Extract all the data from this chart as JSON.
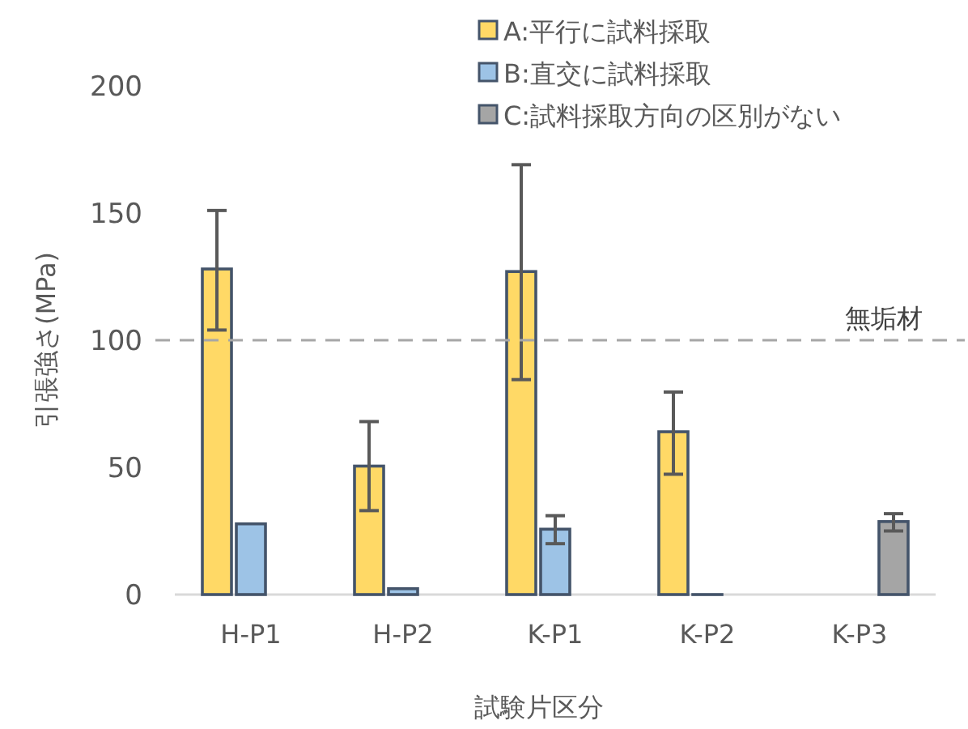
{
  "chart_data": {
    "type": "bar",
    "xlabel": "試験片区分",
    "ylabel": "引張強さ(MPa)",
    "categories": [
      "H-P1",
      "H-P2",
      "K-P1",
      "K-P2",
      "K-P3"
    ],
    "series": [
      {
        "name": "A:平行に試料採取",
        "color": "#ffd966",
        "values": [
          128,
          50.5,
          127,
          64,
          null
        ],
        "errors": [
          [
            104,
            151
          ],
          [
            33,
            68
          ],
          [
            84.5,
            169
          ],
          [
            47.3,
            79.6
          ],
          null
        ]
      },
      {
        "name": "B:直交に試料採取",
        "color": "#9dc3e6",
        "values": [
          27.8,
          2.3,
          25.7,
          0,
          null
        ],
        "errors": [
          null,
          null,
          [
            20,
            31
          ],
          null,
          null
        ]
      },
      {
        "name": "C:試料採取方向の区別がない",
        "color": "#a5a5a5",
        "values": [
          null,
          null,
          null,
          null,
          28.7
        ],
        "errors": [
          null,
          null,
          null,
          null,
          [
            25,
            31.8
          ]
        ]
      }
    ],
    "ylim": [
      0,
      200
    ],
    "yticks": [
      0,
      50,
      100,
      150,
      200
    ],
    "ref_lines": [
      {
        "axis": "y",
        "value": 100,
        "label": "無垢材",
        "color": "#a6a6a6",
        "line_style": "dashed"
      }
    ],
    "legend": "top right",
    "grid": false
  }
}
